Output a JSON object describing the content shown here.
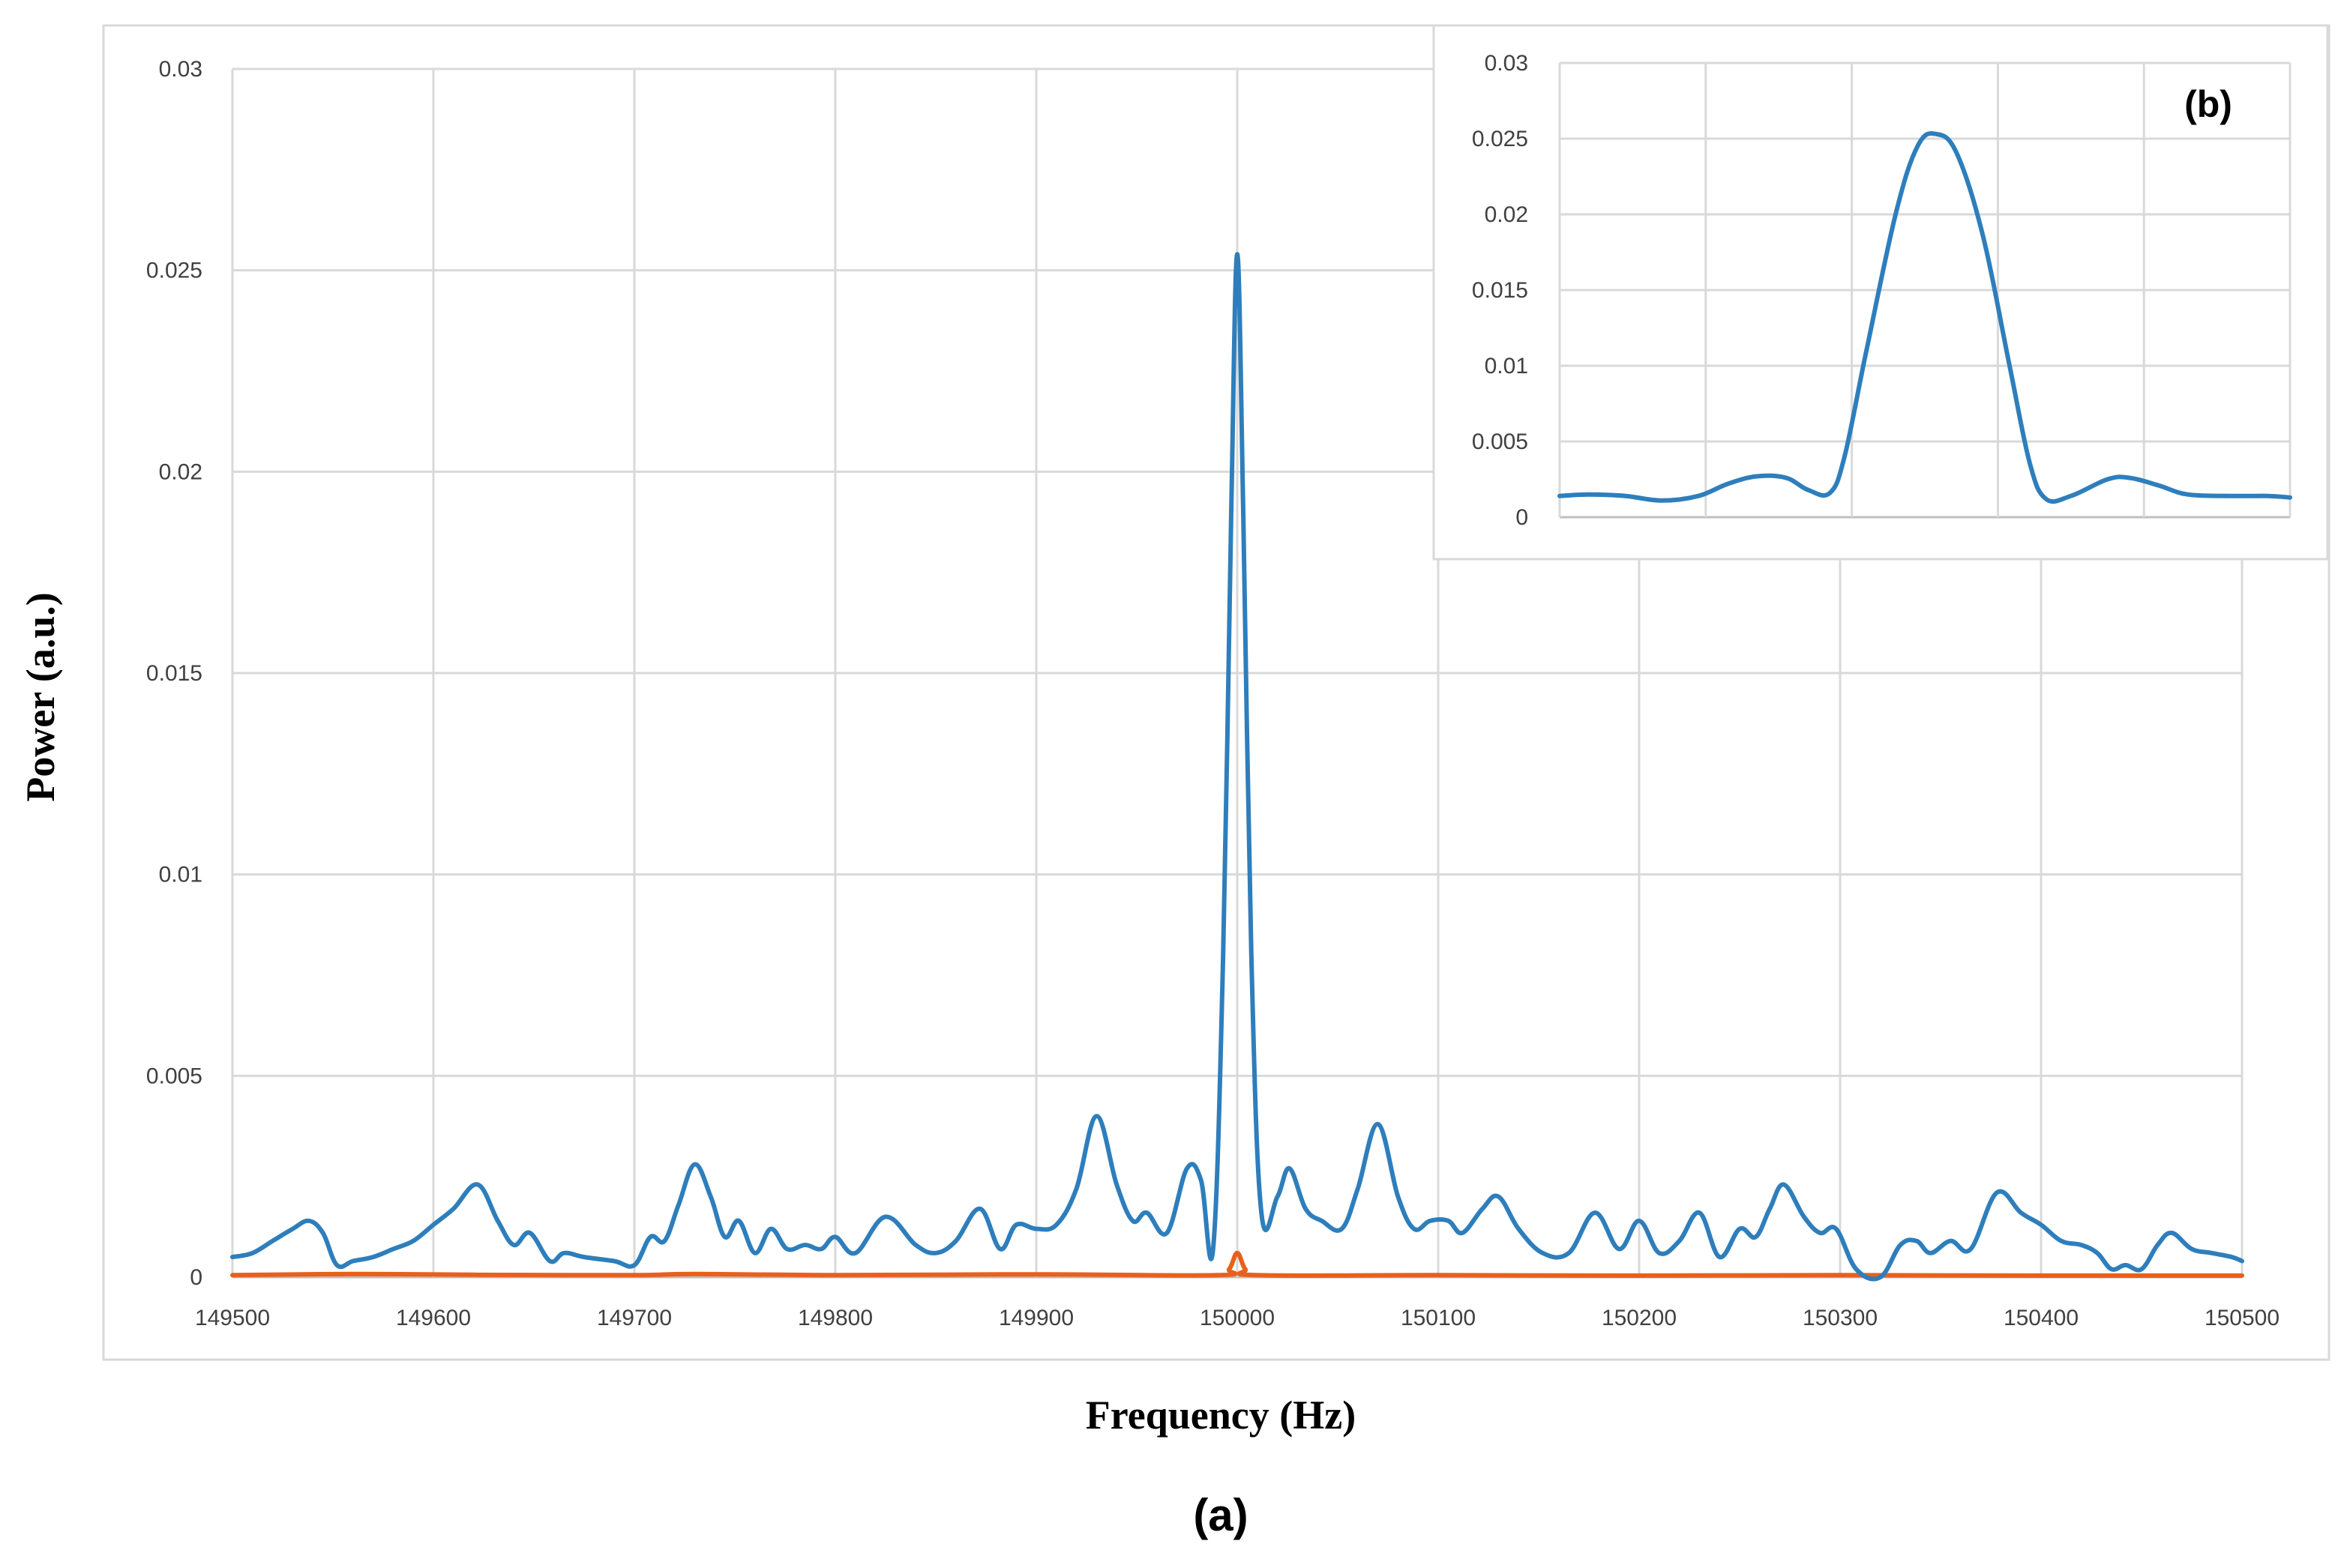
{
  "figure": {
    "panel_a_label": "(a)",
    "panel_b_label": "(b)"
  },
  "chart_data": [
    {
      "type": "line",
      "panel": "(a)",
      "xlabel": "Frequency (Hz)",
      "ylabel": "Power (a.u.)",
      "xlim": [
        149500,
        150500
      ],
      "ylim": [
        0,
        0.03
      ],
      "x_ticks": [
        "149500",
        "149600",
        "149700",
        "149800",
        "149900",
        "150000",
        "150100",
        "150200",
        "150300",
        "150400",
        "150500"
      ],
      "y_ticks": [
        "0",
        "0.005",
        "0.01",
        "0.015",
        "0.02",
        "0.025",
        "0.03"
      ],
      "grid": true,
      "legend": "none",
      "series": [
        {
          "color": "#2e7ebc",
          "points": [
            [
              149500,
              0.0005
            ],
            [
              149510,
              0.0006
            ],
            [
              149520,
              0.0009
            ],
            [
              149530,
              0.0012
            ],
            [
              149538,
              0.0014
            ],
            [
              149545,
              0.0011
            ],
            [
              149552,
              0.0003
            ],
            [
              149560,
              0.0004
            ],
            [
              149570,
              0.0005
            ],
            [
              149580,
              0.0007
            ],
            [
              149590,
              0.0009
            ],
            [
              149600,
              0.0013
            ],
            [
              149610,
              0.0017
            ],
            [
              149622,
              0.0023
            ],
            [
              149632,
              0.0014
            ],
            [
              149640,
              0.0008
            ],
            [
              149648,
              0.0011
            ],
            [
              149658,
              0.0004
            ],
            [
              149665,
              0.0006
            ],
            [
              149675,
              0.0005
            ],
            [
              149690,
              0.0004
            ],
            [
              149700,
              0.0003
            ],
            [
              149708,
              0.001
            ],
            [
              149715,
              0.0009
            ],
            [
              149722,
              0.0018
            ],
            [
              149730,
              0.0028
            ],
            [
              149738,
              0.002
            ],
            [
              149745,
              0.001
            ],
            [
              149752,
              0.0014
            ],
            [
              149760,
              0.0006
            ],
            [
              149768,
              0.0012
            ],
            [
              149776,
              0.0007
            ],
            [
              149785,
              0.0008
            ],
            [
              149793,
              0.0007
            ],
            [
              149800,
              0.001
            ],
            [
              149810,
              0.0006
            ],
            [
              149825,
              0.0015
            ],
            [
              149840,
              0.0008
            ],
            [
              149850,
              0.0006
            ],
            [
              149860,
              0.0009
            ],
            [
              149872,
              0.0017
            ],
            [
              149882,
              0.0007
            ],
            [
              149890,
              0.0013
            ],
            [
              149900,
              0.0012
            ],
            [
              149910,
              0.0013
            ],
            [
              149920,
              0.0022
            ],
            [
              149930,
              0.004
            ],
            [
              149940,
              0.0023
            ],
            [
              149948,
              0.0014
            ],
            [
              149955,
              0.0016
            ],
            [
              149965,
              0.0011
            ],
            [
              149975,
              0.0027
            ],
            [
              149982,
              0.0024
            ],
            [
              149988,
              0.0007
            ],
            [
              149993,
              0.008
            ],
            [
              149997,
              0.019
            ],
            [
              150000,
              0.0254
            ],
            [
              150003,
              0.019
            ],
            [
              150007,
              0.008
            ],
            [
              150012,
              0.0016
            ],
            [
              150020,
              0.002
            ],
            [
              150026,
              0.0027
            ],
            [
              150034,
              0.0017
            ],
            [
              150042,
              0.0014
            ],
            [
              150052,
              0.0012
            ],
            [
              150060,
              0.0022
            ],
            [
              150070,
              0.0038
            ],
            [
              150080,
              0.002
            ],
            [
              150088,
              0.0012
            ],
            [
              150096,
              0.0014
            ],
            [
              150105,
              0.0014
            ],
            [
              150112,
              0.0011
            ],
            [
              150122,
              0.0017
            ],
            [
              150130,
              0.002
            ],
            [
              150140,
              0.0012
            ],
            [
              150152,
              0.0006
            ],
            [
              150165,
              0.0006
            ],
            [
              150178,
              0.0016
            ],
            [
              150190,
              0.0007
            ],
            [
              150200,
              0.0014
            ],
            [
              150210,
              0.0006
            ],
            [
              150220,
              0.0009
            ],
            [
              150230,
              0.0016
            ],
            [
              150240,
              0.0005
            ],
            [
              150250,
              0.0012
            ],
            [
              150258,
              0.001
            ],
            [
              150265,
              0.0017
            ],
            [
              150272,
              0.0023
            ],
            [
              150282,
              0.0015
            ],
            [
              150290,
              0.0011
            ],
            [
              150298,
              0.0012
            ],
            [
              150308,
              0.0002
            ],
            [
              150320,
              0.0
            ],
            [
              150330,
              0.0008
            ],
            [
              150338,
              0.0009
            ],
            [
              150345,
              0.0006
            ],
            [
              150355,
              0.0009
            ],
            [
              150365,
              0.0007
            ],
            [
              150378,
              0.0021
            ],
            [
              150390,
              0.0016
            ],
            [
              150400,
              0.0013
            ],
            [
              150410,
              0.0009
            ],
            [
              150420,
              0.0008
            ],
            [
              150428,
              0.0006
            ],
            [
              150435,
              0.0002
            ],
            [
              150442,
              0.0003
            ],
            [
              150450,
              0.0002
            ],
            [
              150458,
              0.0008
            ],
            [
              150465,
              0.0011
            ],
            [
              150475,
              0.0007
            ],
            [
              150485,
              0.0006
            ],
            [
              150495,
              0.0005
            ],
            [
              150500,
              0.0004
            ]
          ]
        },
        {
          "color": "#e8601c",
          "points": [
            [
              149500,
              5e-05
            ],
            [
              149560,
              8e-05
            ],
            [
              149620,
              6e-05
            ],
            [
              149700,
              5e-05
            ],
            [
              149730,
              8e-05
            ],
            [
              149800,
              5e-05
            ],
            [
              149900,
              7e-05
            ],
            [
              149990,
              5e-05
            ],
            [
              149996,
              0.0002
            ],
            [
              150000,
              0.0006
            ],
            [
              150004,
              0.0002
            ],
            [
              150010,
              5e-05
            ],
            [
              150100,
              5e-05
            ],
            [
              150200,
              4e-05
            ],
            [
              150300,
              5e-05
            ],
            [
              150400,
              4e-05
            ],
            [
              150500,
              4e-05
            ]
          ]
        }
      ]
    },
    {
      "type": "line",
      "panel": "(b)",
      "xlabel": "",
      "ylabel": "",
      "x_range_relative": [
        0,
        5
      ],
      "ylim": [
        0,
        0.03
      ],
      "y_ticks": [
        "0",
        "0.005",
        "0.01",
        "0.015",
        "0.02",
        "0.025",
        "0.03"
      ],
      "grid": true,
      "legend": "none",
      "series": [
        {
          "color": "#2e7ebc",
          "points": [
            [
              0.0,
              0.0014
            ],
            [
              0.2,
              0.0015
            ],
            [
              0.45,
              0.0014
            ],
            [
              0.7,
              0.0011
            ],
            [
              0.95,
              0.0014
            ],
            [
              1.15,
              0.0022
            ],
            [
              1.35,
              0.0027
            ],
            [
              1.55,
              0.0026
            ],
            [
              1.7,
              0.0018
            ],
            [
              1.85,
              0.0016
            ],
            [
              1.95,
              0.004
            ],
            [
              2.1,
              0.011
            ],
            [
              2.3,
              0.02
            ],
            [
              2.45,
              0.0245
            ],
            [
              2.58,
              0.0253
            ],
            [
              2.72,
              0.024
            ],
            [
              2.9,
              0.0185
            ],
            [
              3.08,
              0.01
            ],
            [
              3.22,
              0.0035
            ],
            [
              3.33,
              0.0012
            ],
            [
              3.5,
              0.0014
            ],
            [
              3.75,
              0.0025
            ],
            [
              3.9,
              0.0026
            ],
            [
              4.1,
              0.0021
            ],
            [
              4.3,
              0.0015
            ],
            [
              4.6,
              0.0014
            ],
            [
              4.85,
              0.0014
            ],
            [
              5.0,
              0.0013
            ]
          ]
        }
      ]
    }
  ]
}
